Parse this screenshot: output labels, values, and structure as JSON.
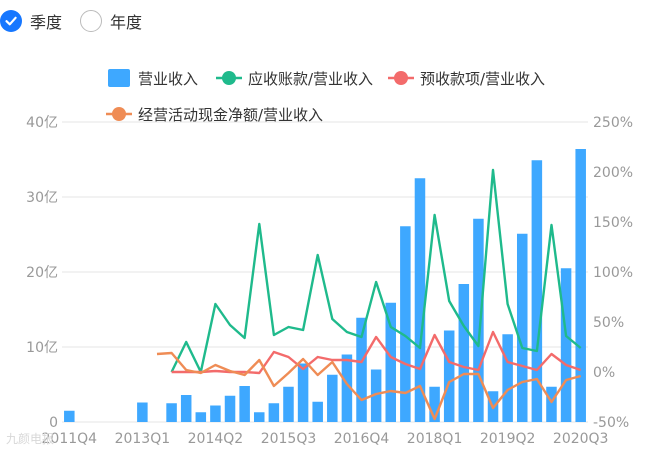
{
  "period_toggle": {
    "options": [
      {
        "label": "季度",
        "selected": true
      },
      {
        "label": "年度",
        "selected": false
      }
    ]
  },
  "watermark": "九颜电报",
  "colors": {
    "revenue": "#3ea8ff",
    "receivables": "#1fba8c",
    "advance": "#f36b6b",
    "cashflow": "#ef8c55",
    "selected": "#1677ff"
  },
  "chart_data": {
    "type": "bar+line",
    "left_axis": {
      "min": 0,
      "max": 40,
      "unit": "亿",
      "ticks": [
        "0",
        "10亿",
        "20亿",
        "30亿",
        "40亿"
      ]
    },
    "right_axis": {
      "min": -50,
      "max": 250,
      "unit": "%",
      "ticks": [
        "-50%",
        "0%",
        "50%",
        "100%",
        "150%",
        "200%",
        "250%"
      ]
    },
    "x_tick_labels": [
      "2011Q4",
      "2013Q1",
      "2014Q2",
      "2015Q3",
      "2016Q4",
      "2018Q1",
      "2019Q2",
      "2020Q3"
    ],
    "legend": [
      {
        "name": "营业收入",
        "shape": "bar",
        "color": "#3ea8ff"
      },
      {
        "name": "应收账款/营业收入",
        "shape": "line",
        "color": "#1fba8c"
      },
      {
        "name": "预收款项/营业收入",
        "shape": "line",
        "color": "#f36b6b"
      },
      {
        "name": "经营活动现金净额/营业收入",
        "shape": "line",
        "color": "#ef8c55"
      }
    ],
    "categories": [
      "2011Q4",
      "2012Q1",
      "2012Q2",
      "2012Q3",
      "2012Q4",
      "2013Q1",
      "2013Q2",
      "2013Q3",
      "2013Q4",
      "2014Q1",
      "2014Q2",
      "2014Q3",
      "2014Q4",
      "2015Q1",
      "2015Q2",
      "2015Q3",
      "2015Q4",
      "2016Q1",
      "2016Q2",
      "2016Q3",
      "2016Q4",
      "2017Q1",
      "2017Q2",
      "2017Q3",
      "2017Q4",
      "2018Q1",
      "2018Q2",
      "2018Q3",
      "2018Q4",
      "2019Q1",
      "2019Q2",
      "2019Q3",
      "2019Q4",
      "2020Q1",
      "2020Q2",
      "2020Q3"
    ],
    "series": [
      {
        "name": "营业收入",
        "type": "bar",
        "axis": "left",
        "values": [
          1.5,
          0,
          0,
          0,
          0,
          2.6,
          0,
          2.5,
          3.6,
          1.3,
          2.2,
          3.5,
          4.8,
          1.3,
          2.5,
          4.7,
          7.8,
          2.7,
          6.3,
          9.0,
          13.9,
          7.0,
          15.9,
          26.1,
          32.5,
          4.7,
          12.2,
          18.4,
          27.1,
          4.1,
          11.7,
          25.1,
          34.9,
          4.7,
          20.5,
          36.4
        ]
      },
      {
        "name": "应收账款/营业收入",
        "type": "line",
        "axis": "right",
        "values": [
          null,
          null,
          null,
          null,
          null,
          null,
          null,
          0,
          30,
          0,
          68,
          47,
          34,
          148,
          37,
          45,
          42,
          117,
          53,
          40,
          35,
          90,
          45,
          36,
          24,
          157,
          71,
          46,
          26,
          202,
          68,
          24,
          21,
          147,
          36,
          24
        ]
      },
      {
        "name": "预收款项/营业收入",
        "type": "line",
        "axis": "right",
        "values": [
          null,
          null,
          null,
          null,
          null,
          null,
          null,
          0,
          0,
          0,
          1,
          0,
          0,
          -1,
          20,
          15,
          3,
          15,
          12,
          12,
          10,
          35,
          15,
          8,
          3,
          37,
          10,
          5,
          2,
          40,
          10,
          6,
          2,
          18,
          7,
          2
        ]
      },
      {
        "name": "经营活动现金净额/营业收入",
        "type": "line",
        "axis": "right",
        "values": [
          null,
          null,
          null,
          null,
          null,
          null,
          18,
          19,
          2,
          -1,
          7,
          1,
          -3,
          12,
          -14,
          -1,
          13,
          -3,
          10,
          -12,
          -28,
          -22,
          -19,
          -21,
          -14,
          -47,
          -10,
          -2,
          -2,
          -36,
          -18,
          -10,
          -7,
          -30,
          -8,
          -4
        ]
      }
    ]
  }
}
